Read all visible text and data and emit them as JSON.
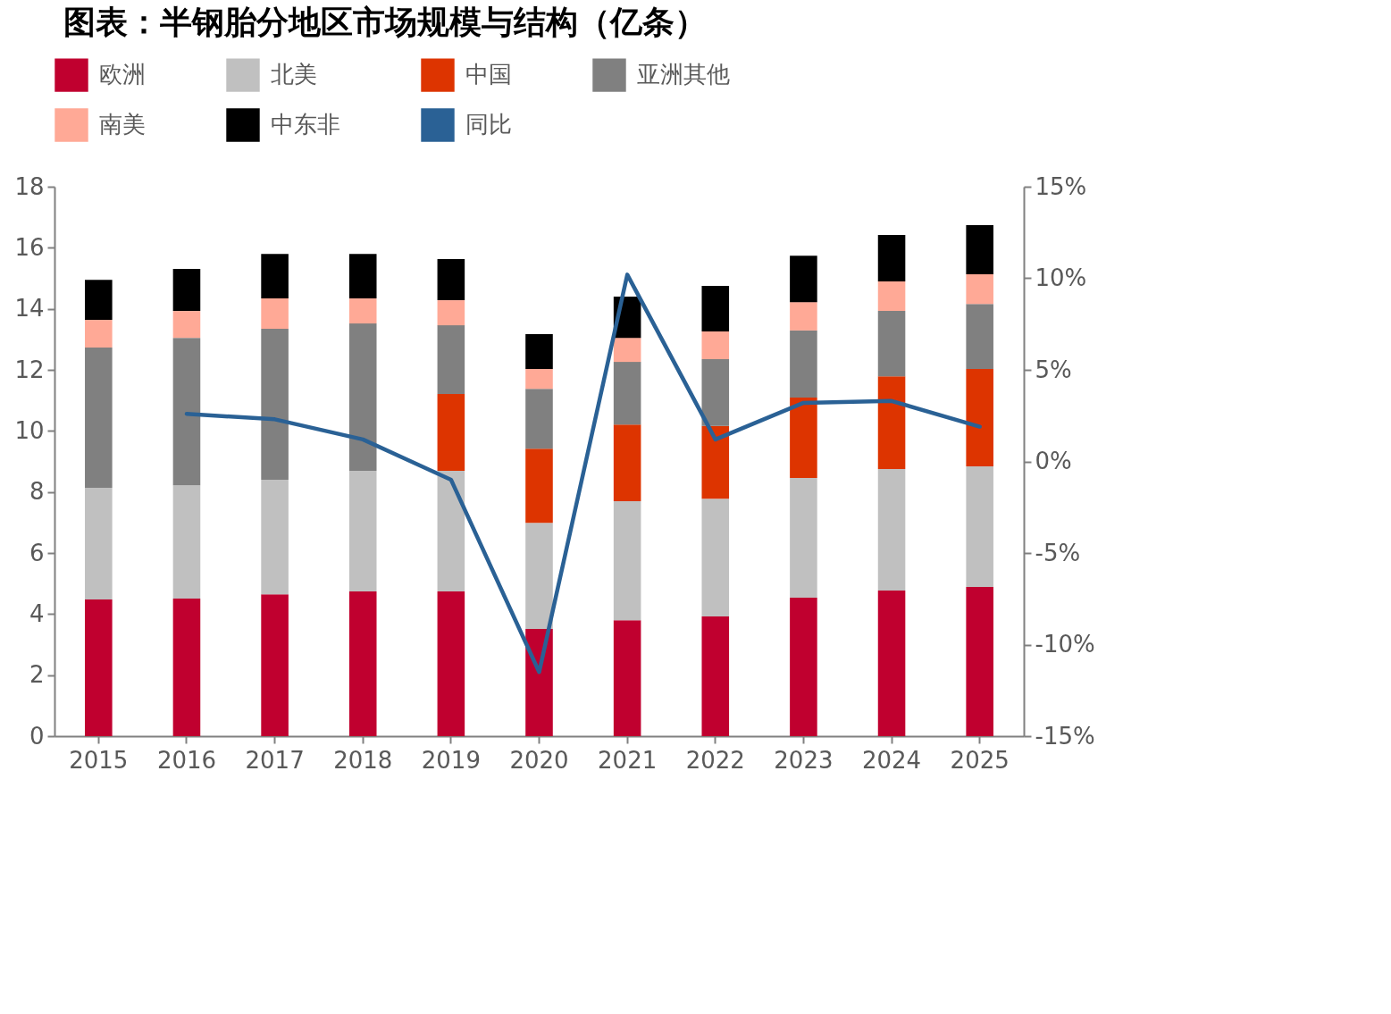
{
  "chart_data": {
    "type": "bar",
    "title": "图表：半钢胎分地区市场规模与结构（亿条）",
    "stacked": true,
    "legend": "top",
    "grid": false,
    "categories": [
      "2015",
      "2016",
      "2017",
      "2018",
      "2019",
      "2020",
      "2021",
      "2022",
      "2023",
      "2024",
      "2025"
    ],
    "ylim": [
      0,
      18
    ],
    "yticks": [
      0,
      2,
      4,
      6,
      8,
      10,
      12,
      14,
      16,
      18
    ],
    "y2lim": [
      -15,
      15
    ],
    "y2ticks": [
      {
        "value": -15,
        "label": "-15%"
      },
      {
        "value": -10,
        "label": "-10%"
      },
      {
        "value": -5,
        "label": "-5%"
      },
      {
        "value": 0,
        "label": "0%"
      },
      {
        "value": 5,
        "label": "5%"
      },
      {
        "value": 10,
        "label": "10%"
      },
      {
        "value": 15,
        "label": "15%"
      }
    ],
    "series": [
      {
        "name": "欧洲",
        "color": "#c0002f",
        "values": [
          4.48,
          4.51,
          4.65,
          4.74,
          4.74,
          3.51,
          3.8,
          3.92,
          4.54,
          4.77,
          4.89
        ]
      },
      {
        "name": "北美",
        "color": "#c0c0c0",
        "values": [
          3.66,
          3.71,
          3.75,
          3.95,
          3.95,
          3.48,
          3.9,
          3.86,
          3.92,
          3.98,
          3.95
        ]
      },
      {
        "name": "中国",
        "color": "#dd3400",
        "values": [
          null,
          null,
          null,
          null,
          2.52,
          2.43,
          2.51,
          2.38,
          2.63,
          3.04,
          3.19
        ]
      },
      {
        "name": "亚洲其他",
        "color": "#808080",
        "values": [
          4.59,
          4.83,
          4.95,
          4.83,
          2.25,
          1.96,
          2.05,
          2.19,
          2.2,
          2.14,
          2.13
        ]
      },
      {
        "name": "南美",
        "color": "#ffa996",
        "values": [
          0.91,
          0.88,
          0.99,
          0.82,
          0.82,
          0.65,
          0.79,
          0.91,
          0.93,
          0.97,
          0.97
        ]
      },
      {
        "name": "中东非",
        "color": "#000000",
        "values": [
          1.31,
          1.38,
          1.46,
          1.46,
          1.35,
          1.14,
          1.35,
          1.49,
          1.52,
          1.52,
          1.61
        ]
      },
      {
        "name": "同比",
        "type": "line",
        "axis": "y2",
        "color": "#2a6195",
        "values": [
          null,
          2.6,
          2.3,
          1.2,
          -1.0,
          -11.5,
          10.2,
          1.2,
          3.2,
          3.3,
          1.9
        ]
      }
    ]
  }
}
